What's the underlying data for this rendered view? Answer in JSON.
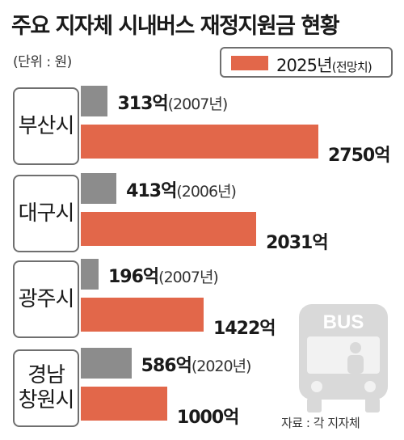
{
  "chart_data": {
    "type": "bar",
    "title": "주요 지자체 시내버스 재정지원금 현황",
    "unit_label": "(단위 : 원)",
    "legend": {
      "series_2025_label": "2025년",
      "series_2025_note": "(전망치)"
    },
    "value_suffix": "억",
    "categories": [
      "부산시",
      "대구시",
      "광주시",
      "경남\n창원시"
    ],
    "series": [
      {
        "values": [
          313,
          413,
          196,
          586
        ],
        "years": [
          "(2007년)",
          "(2006년)",
          "(2007년)",
          "(2020년)"
        ]
      },
      {
        "name": "2025년 (전망치)",
        "values": [
          2750,
          2031,
          1422,
          1000
        ]
      }
    ],
    "source": "자료 : 각 지자체",
    "colors": {
      "base": "#8c8c8c",
      "forecast": "#e2674a"
    }
  },
  "icons": {
    "bus": "bus-icon"
  },
  "bus_text": "BUS"
}
